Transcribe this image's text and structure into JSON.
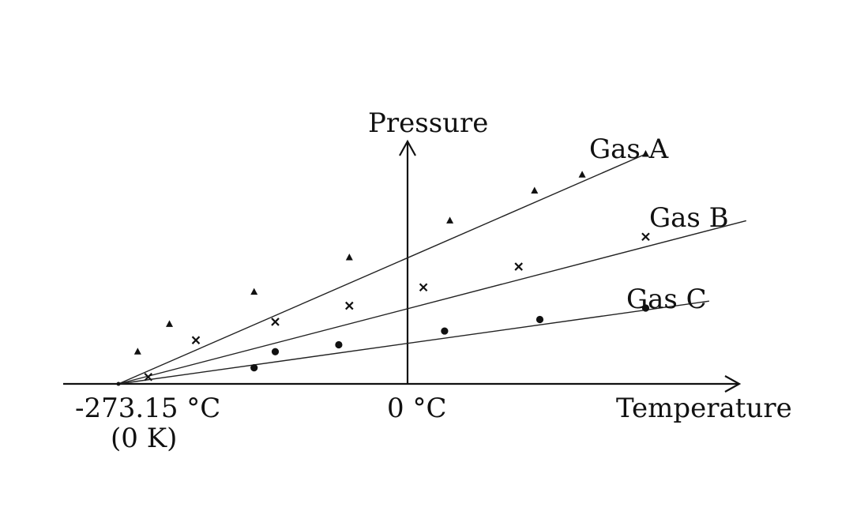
{
  "chart_data": {
    "type": "line",
    "xlabel": "Temperature",
    "ylabel": "Pressure",
    "x_ticks": [
      {
        "value": -273.15,
        "label": "-273.15 °C",
        "sublabel": "(0 K)"
      },
      {
        "value": 0,
        "label": "0 °C"
      }
    ],
    "xlim": [
      -350,
      400
    ],
    "ylim": [
      0,
      110
    ],
    "grid": false,
    "legend": "inline labels at line ends",
    "series": [
      {
        "name": "Gas A",
        "marker": "triangle",
        "line": {
          "x": [
            -273.15,
            225
          ],
          "y": [
            0,
            100
          ]
        },
        "points": [
          {
            "x": -255,
            "y": 14
          },
          {
            "x": -225,
            "y": 26
          },
          {
            "x": -145,
            "y": 40
          },
          {
            "x": -55,
            "y": 55
          },
          {
            "x": 40,
            "y": 71
          },
          {
            "x": 120,
            "y": 84
          },
          {
            "x": 165,
            "y": 91
          },
          {
            "x": 225,
            "y": 100
          }
        ]
      },
      {
        "name": "Gas B",
        "marker": "cross",
        "line": {
          "x": [
            -273.15,
            320
          ],
          "y": [
            0,
            71
          ]
        },
        "points": [
          {
            "x": -245,
            "y": 3
          },
          {
            "x": -200,
            "y": 19
          },
          {
            "x": -125,
            "y": 27
          },
          {
            "x": -55,
            "y": 34
          },
          {
            "x": 15,
            "y": 42
          },
          {
            "x": 105,
            "y": 51
          },
          {
            "x": 225,
            "y": 64
          }
        ]
      },
      {
        "name": "Gas C",
        "marker": "dot",
        "line": {
          "x": [
            -273.15,
            285
          ],
          "y": [
            0,
            36
          ]
        },
        "points": [
          {
            "x": -145,
            "y": 7
          },
          {
            "x": -125,
            "y": 14
          },
          {
            "x": -65,
            "y": 17
          },
          {
            "x": 35,
            "y": 23
          },
          {
            "x": 125,
            "y": 28
          },
          {
            "x": 225,
            "y": 33
          }
        ]
      }
    ]
  }
}
